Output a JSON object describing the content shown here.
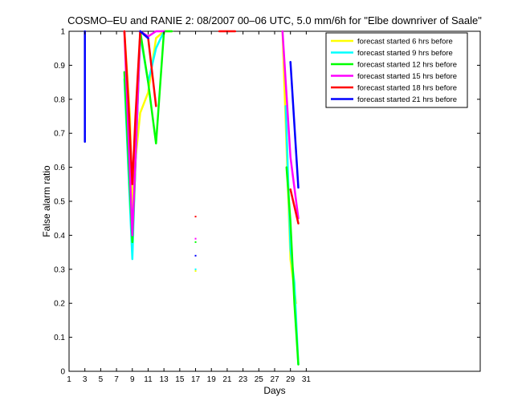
{
  "chart_data": {
    "type": "line",
    "title": "COSMO–EU and RANIE 2: 08/2007 00–06 UTC, 5.0 mm/6h for \"Elbe downriver of Saale\"",
    "xlabel": "Days",
    "ylabel": "False alarm ratio",
    "xlim": [
      1,
      53
    ],
    "ylim": [
      0,
      1
    ],
    "xticks": [
      1,
      3,
      5,
      7,
      9,
      11,
      13,
      15,
      17,
      19,
      21,
      23,
      25,
      27,
      29,
      31
    ],
    "yticks": [
      0,
      0.1,
      0.2,
      0.3,
      0.4,
      0.5,
      0.6,
      0.7,
      0.8,
      0.9,
      1
    ],
    "ytick_labels": [
      "0",
      "0.1",
      "0.2",
      "0.3",
      "0.4",
      "0.5",
      "0.6",
      "0.7",
      "0.8",
      "0.9",
      "1"
    ],
    "grid": false,
    "legend_position": "top-right",
    "series": [
      {
        "name": "forecast started 6 hrs before",
        "color": "#ffff00",
        "segments": [
          [
            [
              3,
              0.77
            ]
          ],
          [
            [
              8,
              1
            ],
            [
              8.7,
              0.75
            ],
            [
              9,
              0.45
            ],
            [
              9.3,
              0.6
            ],
            [
              10,
              0.76
            ],
            [
              11,
              0.82
            ],
            [
              12,
              0.98
            ],
            [
              13,
              1
            ],
            [
              14,
              1
            ]
          ],
          [
            [
              17,
              0.295
            ]
          ],
          [
            [
              28,
              1
            ],
            [
              29,
              0.33
            ],
            [
              29.7,
              0.2
            ]
          ]
        ]
      },
      {
        "name": "forecast started 9 hrs before",
        "color": "#00ffff",
        "segments": [
          [
            [
              3,
              0.685
            ]
          ],
          [
            [
              8,
              0.86
            ],
            [
              9,
              0.33
            ],
            [
              9.3,
              0.55
            ],
            [
              10,
              0.99
            ],
            [
              11,
              0.85
            ],
            [
              12,
              0.95
            ],
            [
              13,
              1
            ]
          ],
          [
            [
              17,
              0.3
            ]
          ],
          [
            [
              28.4,
              0.78
            ],
            [
              29,
              0.36
            ],
            [
              29.5,
              0.26
            ],
            [
              30,
              0.02
            ]
          ]
        ]
      },
      {
        "name": "forecast started 12 hrs before",
        "color": "#00ff00",
        "segments": [
          [
            [
              3,
              0.76
            ]
          ],
          [
            [
              8,
              0.88
            ],
            [
              9,
              0.38
            ],
            [
              9.3,
              0.55
            ],
            [
              10,
              1
            ],
            [
              11,
              0.85
            ],
            [
              12,
              0.67
            ],
            [
              13,
              1
            ],
            [
              14,
              1
            ]
          ],
          [
            [
              17,
              0.38
            ]
          ],
          [
            [
              28.5,
              0.6
            ],
            [
              29,
              0.44
            ],
            [
              29.5,
              0.2
            ],
            [
              30,
              0.02
            ]
          ]
        ]
      },
      {
        "name": "forecast started 15 hrs before",
        "color": "#ff00ff",
        "segments": [
          [
            [
              3,
              0.745
            ]
          ],
          [
            [
              8,
              1
            ],
            [
              9,
              0.4
            ],
            [
              9.4,
              0.62
            ],
            [
              10,
              1
            ],
            [
              11,
              0.985
            ],
            [
              12,
              1
            ],
            [
              13,
              1
            ]
          ],
          [
            [
              17,
              0.39
            ]
          ],
          [
            [
              28,
              1
            ],
            [
              29,
              0.63
            ],
            [
              30,
              0.45
            ]
          ]
        ]
      },
      {
        "name": "forecast started 18 hrs before",
        "color": "#ff0000",
        "segments": [
          [
            [
              3,
              0.705
            ]
          ],
          [
            [
              8,
              1
            ],
            [
              8.5,
              0.8
            ],
            [
              9,
              0.55
            ],
            [
              9.4,
              0.75
            ],
            [
              10,
              1
            ],
            [
              11,
              0.98
            ],
            [
              12,
              0.78
            ]
          ],
          [
            [
              17,
              0.455
            ]
          ],
          [
            [
              20,
              1
            ],
            [
              22,
              1
            ]
          ],
          [
            [
              29,
              0.535
            ],
            [
              30,
              0.435
            ]
          ]
        ]
      },
      {
        "name": "forecast started 21 hrs before",
        "color": "#0000ff",
        "segments": [
          [
            [
              3,
              0.675
            ],
            [
              3,
              1
            ]
          ],
          [
            [
              10,
              1
            ],
            [
              11,
              0.98
            ]
          ],
          [
            [
              17,
              0.34
            ]
          ],
          [
            [
              29,
              0.91
            ],
            [
              30,
              0.54
            ]
          ]
        ]
      }
    ]
  }
}
